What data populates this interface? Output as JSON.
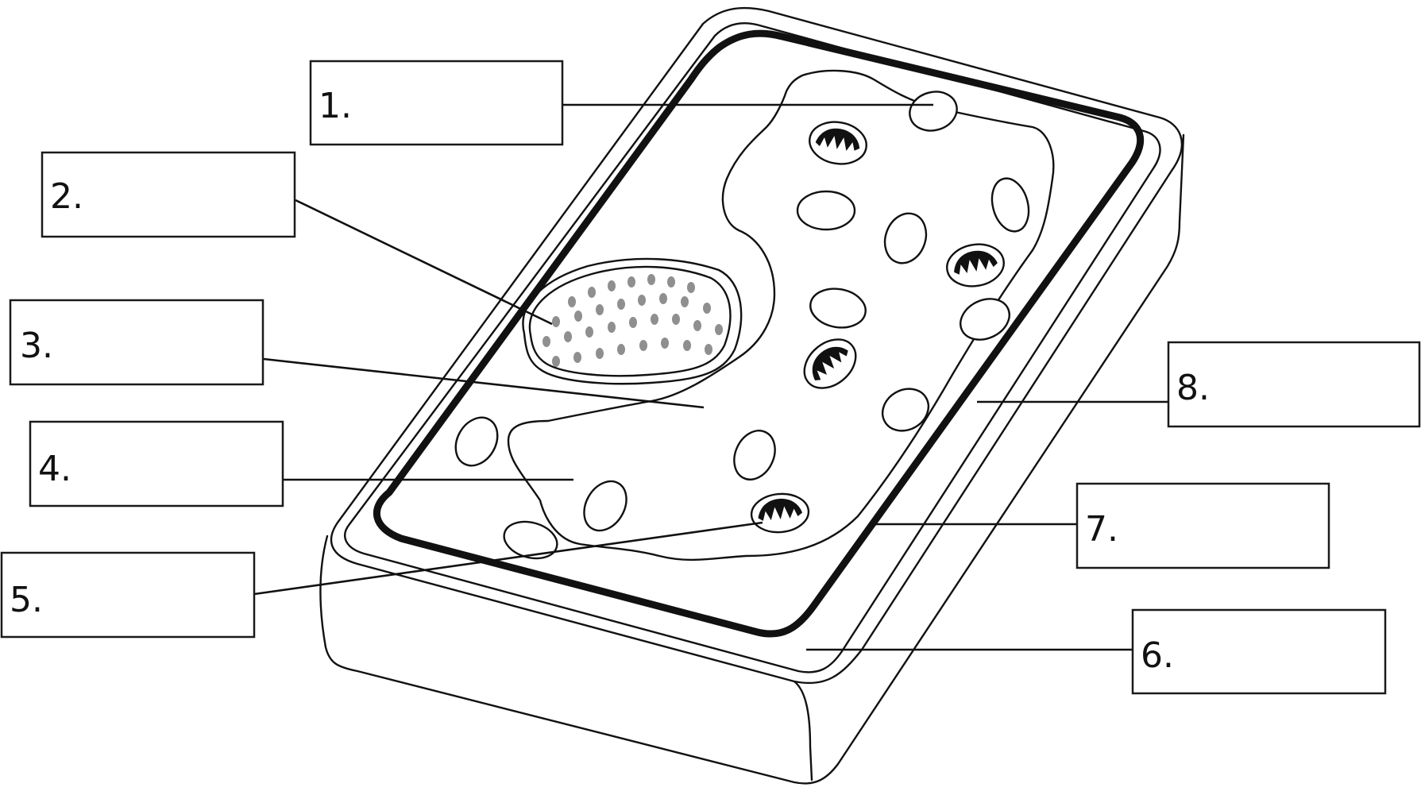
{
  "labels": [
    {
      "id": 1,
      "text": "1."
    },
    {
      "id": 2,
      "text": "2."
    },
    {
      "id": 3,
      "text": "3."
    },
    {
      "id": 4,
      "text": "4."
    },
    {
      "id": 5,
      "text": "5."
    },
    {
      "id": 6,
      "text": "6."
    },
    {
      "id": 7,
      "text": "7."
    },
    {
      "id": 8,
      "text": "8."
    }
  ]
}
